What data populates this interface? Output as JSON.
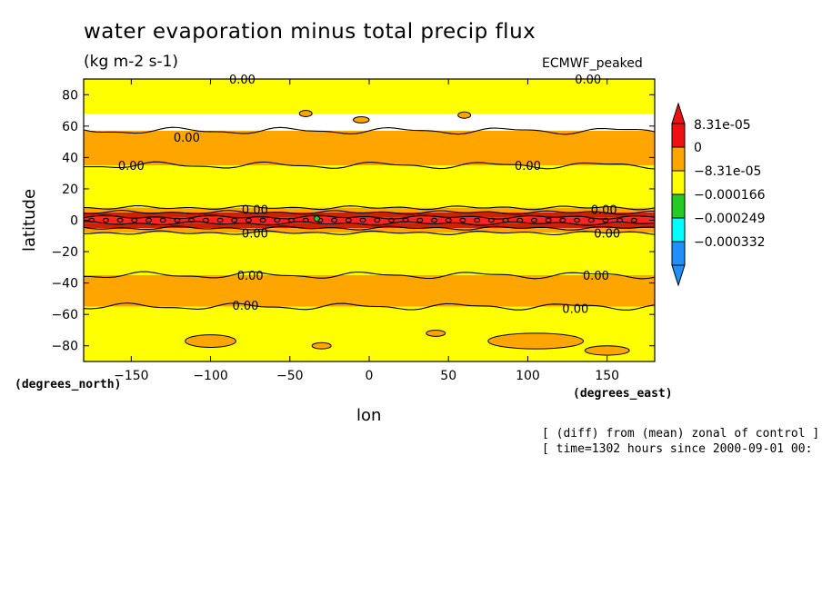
{
  "chart_data": {
    "type": "heatmap",
    "title": "water evaporation minus total precip flux",
    "units": "(kg m-2 s-1)",
    "dataset": "ECMWF_peaked",
    "xlabel": "lon",
    "ylabel": "latitude",
    "x_units": "(degrees_east)",
    "y_units": "(degrees_north)",
    "xlim": [
      -180,
      180
    ],
    "ylim": [
      -90,
      90
    ],
    "x_ticks": [
      -150,
      -100,
      -50,
      0,
      50,
      100,
      150
    ],
    "y_ticks": [
      80,
      60,
      40,
      20,
      0,
      -20,
      -40,
      -60,
      -80
    ],
    "colorbar": {
      "labels": [
        "8.31e-05",
        "0",
        "-8.31e-05",
        "-0.000166",
        "-0.000249",
        "-0.000332"
      ],
      "colors": [
        "#ee1111",
        "#ffa500",
        "#ffff00",
        "#22cc22",
        "#00ffff",
        "#1e90ff"
      ]
    },
    "contour_label": "0.00",
    "lat_bands": [
      {
        "lat": [
          68,
          90
        ],
        "color": "#ffff00"
      },
      {
        "lat": [
          35,
          57
        ],
        "color": "#ffa500"
      },
      {
        "lat": [
          8,
          35
        ],
        "color": "#ffff00"
      },
      {
        "lat": [
          5,
          8
        ],
        "color": "#ffa500"
      },
      {
        "lat": [
          2,
          5
        ],
        "color": "#cc2200"
      },
      {
        "lat": [
          -2,
          2
        ],
        "color": "#ff2222"
      },
      {
        "lat": [
          -5,
          -2
        ],
        "color": "#cc2200"
      },
      {
        "lat": [
          -8,
          -5
        ],
        "color": "#ffa500"
      },
      {
        "lat": [
          -35,
          -8
        ],
        "color": "#ffff00"
      },
      {
        "lat": [
          -55,
          -35
        ],
        "color": "#ffa500"
      },
      {
        "lat": [
          -90,
          -55
        ],
        "color": "#ffff00"
      }
    ],
    "contour_lines": [
      {
        "label_at": [
          [
            -115,
            53
          ],
          [
            -150,
            35
          ],
          [
            100,
            35
          ]
        ]
      },
      {
        "label_at": [
          [
            -72,
            7
          ],
          [
            148,
            7
          ]
        ]
      },
      {
        "label_at": [
          [
            -72,
            -8
          ],
          [
            150,
            -8
          ]
        ]
      },
      {
        "label_at": [
          [
            -75,
            -35
          ],
          [
            143,
            -35
          ]
        ]
      },
      {
        "label_at": [
          [
            -78,
            -54
          ],
          [
            130,
            -56
          ]
        ]
      },
      {
        "label_at": [
          [
            -80,
            90
          ],
          [
            138,
            90
          ]
        ]
      }
    ]
  },
  "footer": {
    "line1": "[ (diff) from (mean) zonal of control ]",
    "line2": "[ time=1302 hours since 2000-09-01 00:"
  }
}
